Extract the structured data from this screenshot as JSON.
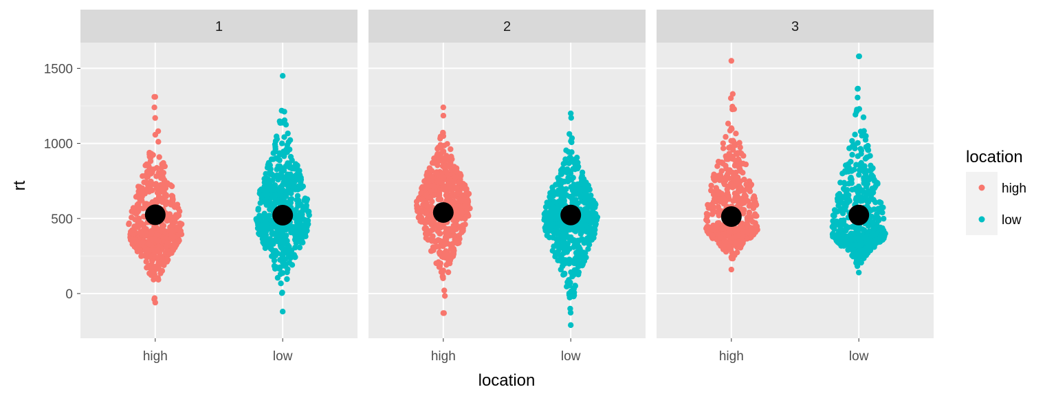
{
  "chart_data": {
    "type": "scatter",
    "subtype": "beeswarm with mean points, faceted",
    "facets": [
      "1",
      "2",
      "3"
    ],
    "categories": [
      "high",
      "low"
    ],
    "xlabel": "location",
    "ylabel": "rt",
    "ylim": [
      -300,
      1700
    ],
    "yticks": [
      0,
      500,
      1000,
      1500
    ],
    "ytick_labels": [
      "0",
      "500",
      "1000",
      "1500"
    ],
    "grid": true,
    "legend": {
      "title": "location",
      "placement": "right",
      "entries": [
        {
          "label": "high",
          "color": "#F8766D"
        },
        {
          "label": "low",
          "color": "#00BFC4"
        }
      ]
    },
    "means": [
      {
        "facet": "1",
        "location": "high",
        "rt": 525
      },
      {
        "facet": "1",
        "location": "low",
        "rt": 522
      },
      {
        "facet": "2",
        "location": "high",
        "rt": 540
      },
      {
        "facet": "2",
        "location": "low",
        "rt": 523
      },
      {
        "facet": "3",
        "location": "high",
        "rt": 513
      },
      {
        "facet": "3",
        "location": "low",
        "rt": 523
      }
    ],
    "distributions": [
      {
        "facet": "1",
        "location": "high",
        "min": -60,
        "max": 1310,
        "peak": 420
      },
      {
        "facet": "1",
        "location": "low",
        "min": -120,
        "max": 1450,
        "peak": 500
      },
      {
        "facet": "2",
        "location": "high",
        "min": -130,
        "max": 1240,
        "peak": 600
      },
      {
        "facet": "2",
        "location": "low",
        "min": -210,
        "max": 1200,
        "peak": 500
      },
      {
        "facet": "3",
        "location": "high",
        "min": 160,
        "max": 1550,
        "peak": 450
      },
      {
        "facet": "3",
        "location": "low",
        "min": 140,
        "max": 1580,
        "peak": 400
      }
    ],
    "colors": {
      "high": "#F8766D",
      "low": "#00BFC4",
      "mean": "#000000",
      "panel": "#EBEBEB",
      "strip": "#D9D9D9",
      "grid": "#FFFFFF"
    }
  }
}
